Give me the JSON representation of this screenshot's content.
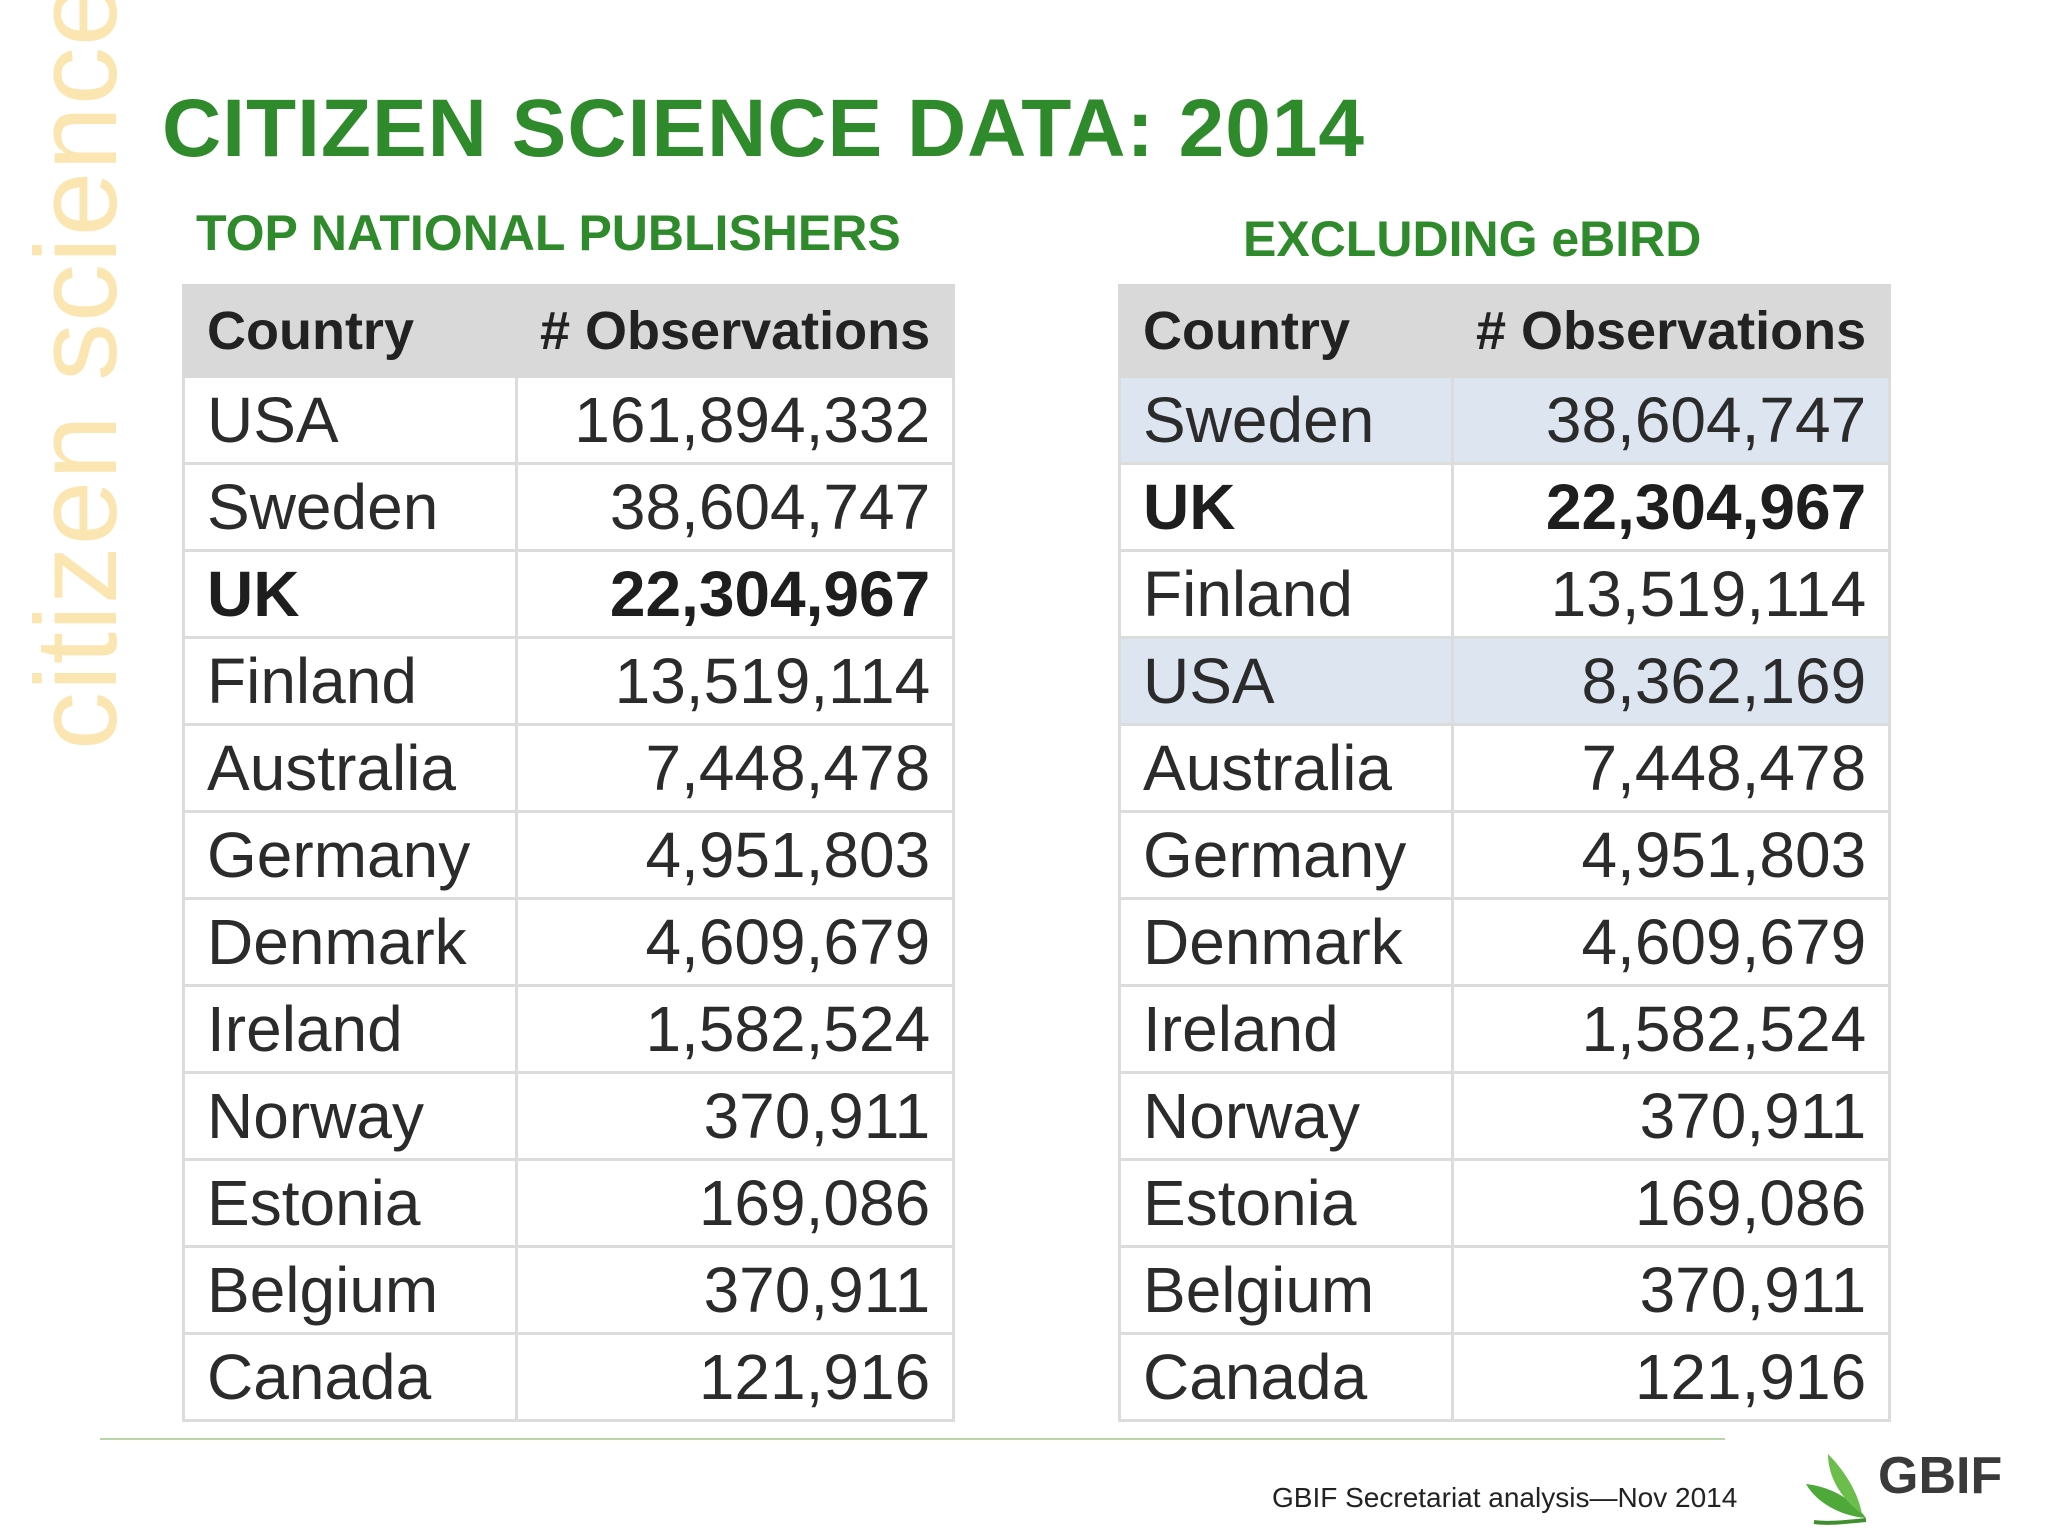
{
  "side_text": "citizen science",
  "title": "CITIZEN SCIENCE DATA: 2014",
  "left_table": {
    "heading": "TOP NATIONAL PUBLISHERS",
    "headers": [
      "Country",
      "# Observations"
    ],
    "rows": [
      {
        "country": "USA",
        "observations": "161,894,332"
      },
      {
        "country": "Sweden",
        "observations": "38,604,747"
      },
      {
        "country": "UK",
        "observations": "22,304,967"
      },
      {
        "country": "Finland",
        "observations": "13,519,114"
      },
      {
        "country": "Australia",
        "observations": "7,448,478"
      },
      {
        "country": "Germany",
        "observations": "4,951,803"
      },
      {
        "country": "Denmark",
        "observations": "4,609,679"
      },
      {
        "country": "Ireland",
        "observations": "1,582,524"
      },
      {
        "country": "Norway",
        "observations": "370,911"
      },
      {
        "country": "Estonia",
        "observations": "169,086"
      },
      {
        "country": "Belgium",
        "observations": "370,911"
      },
      {
        "country": "Canada",
        "observations": "121,916"
      }
    ]
  },
  "right_table": {
    "heading": "EXCLUDING eBIRD",
    "headers": [
      "Country",
      "# Observations"
    ],
    "rows": [
      {
        "country": "Sweden",
        "observations": "38,604,747"
      },
      {
        "country": "UK",
        "observations": "22,304,967"
      },
      {
        "country": "Finland",
        "observations": "13,519,114"
      },
      {
        "country": "USA",
        "observations": "8,362,169"
      },
      {
        "country": "Australia",
        "observations": "7,448,478"
      },
      {
        "country": "Germany",
        "observations": "4,951,803"
      },
      {
        "country": "Denmark",
        "observations": "4,609,679"
      },
      {
        "country": "Ireland",
        "observations": "1,582,524"
      },
      {
        "country": "Norway",
        "observations": "370,911"
      },
      {
        "country": "Estonia",
        "observations": "169,086"
      },
      {
        "country": "Belgium",
        "observations": "370,911"
      },
      {
        "country": "Canada",
        "observations": "121,916"
      }
    ]
  },
  "footer": "GBIF Secretariat analysis—Nov 2014",
  "logo_text": "GBIF",
  "colors": {
    "title_green": "#2f8a2c",
    "side_text": "#fbe6b2",
    "header_gray": "#d9d9d9",
    "highlight_blue": "#dce5f0"
  }
}
